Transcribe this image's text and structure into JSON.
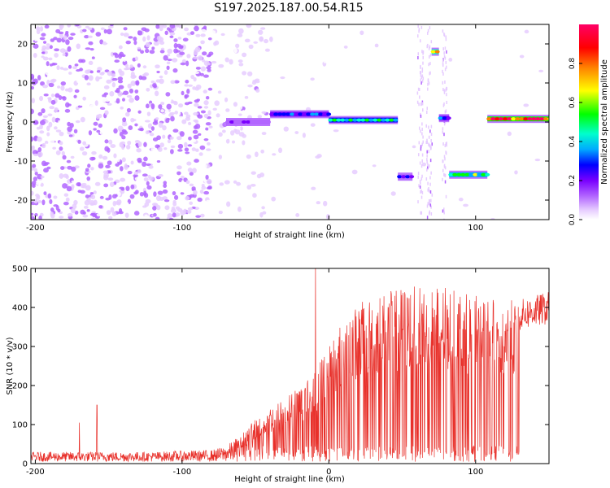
{
  "page": {
    "title": "S197.2025.187.00.54.R15"
  },
  "chart_data": [
    {
      "type": "heatmap",
      "xlabel": "Height of straight line (km)",
      "ylabel": "Frequency (Hz)",
      "xlim": [
        -203,
        150
      ],
      "ylim": [
        -25,
        25
      ],
      "xticks": [
        -200,
        -100,
        0,
        100
      ],
      "yticks": [
        -20,
        -10,
        0,
        10,
        20
      ],
      "colorbar": {
        "label": "Normalized spectral amplitude",
        "range": [
          0,
          1
        ],
        "ticks": [
          0.0,
          0.2,
          0.4,
          0.6,
          0.8
        ]
      },
      "colormap": [
        "#ffffff",
        "#e6ccff",
        "#b266ff",
        "#7a00ff",
        "#0000ff",
        "#00aaff",
        "#00ffcc",
        "#00ff00",
        "#ffff00",
        "#ff8000",
        "#ff0000",
        "#ff0066"
      ],
      "ridge_segments": [
        {
          "x": [
            -70,
            -40
          ],
          "freq": 0,
          "amplitude": 0.2
        },
        {
          "x": [
            -40,
            0
          ],
          "freq": 2,
          "amplitude": 0.35
        },
        {
          "x": [
            0,
            47
          ],
          "freq": 0.5,
          "amplitude": 0.55
        },
        {
          "x": [
            47,
            57
          ],
          "freq": -14,
          "amplitude": 0.3
        },
        {
          "x": [
            70,
            75
          ],
          "freq": 18,
          "amplitude": 0.8
        },
        {
          "x": [
            75,
            82
          ],
          "freq": 1,
          "amplitude": 0.35
        },
        {
          "x": [
            82,
            108
          ],
          "freq": -13.5,
          "amplitude": 0.6
        },
        {
          "x": [
            108,
            150
          ],
          "freq": 0.8,
          "amplitude": 0.9
        }
      ]
    },
    {
      "type": "line",
      "xlabel": "Height of straight line (km)",
      "ylabel": "SNR (10 * v/v)",
      "xlim": [
        -203,
        150
      ],
      "ylim": [
        0,
        500
      ],
      "xticks": [
        -200,
        -100,
        0,
        100
      ],
      "yticks": [
        0,
        100,
        200,
        300,
        400,
        500
      ],
      "color": "#e8302a",
      "envelope": {
        "x": [
          -203,
          -170,
          -160,
          -120,
          -100,
          -80,
          -70,
          -60,
          -50,
          -40,
          -30,
          -20,
          -10,
          -5,
          0,
          10,
          20,
          30,
          40,
          50,
          60,
          70,
          80,
          90,
          100,
          110,
          120,
          130,
          140,
          150
        ],
        "y": [
          25,
          25,
          25,
          25,
          28,
          30,
          40,
          70,
          110,
          140,
          160,
          190,
          230,
          260,
          300,
          360,
          390,
          410,
          420,
          430,
          440,
          440,
          430,
          420,
          410,
          400,
          400,
          400,
          410,
          420
        ]
      },
      "spikes": [
        {
          "x": -170,
          "y": 105
        },
        {
          "x": -158,
          "y": 150
        },
        {
          "x": -9,
          "y": 500
        }
      ]
    }
  ]
}
